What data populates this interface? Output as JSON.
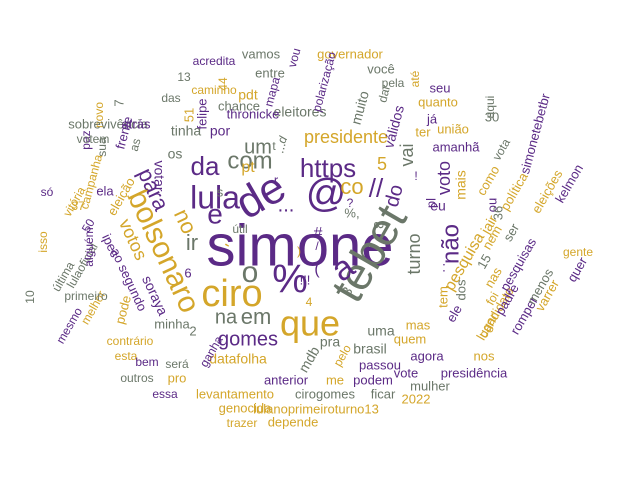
{
  "colors": {
    "purple": "#5b2a86",
    "gold": "#d4a62a",
    "gray": "#6b7769"
  },
  "words": [
    {
      "t": "simone",
      "c": "purple"
    },
    {
      "t": "tebet",
      "c": "gray"
    },
    {
      "t": "de",
      "c": "purple"
    },
    {
      "t": "@",
      "c": "purple"
    },
    {
      "t": "ciro",
      "c": "gold"
    },
    {
      "t": "que",
      "c": "gold"
    },
    {
      "t": "%",
      "c": "purple"
    },
    {
      "t": "a",
      "c": "purple"
    },
    {
      "t": "bolsonaro",
      "c": "gold"
    },
    {
      "t": "lula",
      "c": "purple"
    },
    {
      "t": "https",
      "c": "purple"
    },
    {
      "t": "o",
      "c": "gray"
    },
    {
      "t": "e",
      "c": "purple"
    },
    {
      "t": "com",
      "c": "gray"
    },
    {
      "t": "para",
      "c": "purple"
    },
    {
      "t": "no",
      "c": "gold"
    },
    {
      "t": "não",
      "c": "purple"
    },
    {
      "t": "da",
      "c": "purple"
    },
    {
      "t": "gomes",
      "c": "purple"
    },
    {
      "t": "em",
      "c": "gray"
    },
    {
      "t": "na",
      "c": "gray"
    },
    {
      "t": "votos",
      "c": "gold"
    },
    {
      "t": "co",
      "c": "gold"
    },
    {
      "t": "voto",
      "c": "purple"
    },
    {
      "t": "presidente",
      "c": "gold"
    },
    {
      "t": "turno",
      "c": "gray"
    },
    {
      "t": "do",
      "c": "purple"
    },
    {
      "t": "vai",
      "c": "gray"
    },
    {
      "t": "um",
      "c": "gray"
    },
    {
      "t": "pesquisa",
      "c": "gold"
    },
    {
      "t": "datafolha",
      "c": "gold"
    },
    {
      "t": "votar",
      "c": "purple"
    },
    {
      "t": "ao segundo",
      "c": "purple"
    },
    {
      "t": "brasil",
      "c": "gray"
    },
    {
      "t": "uma",
      "c": "gray"
    },
    {
      "t": "pra",
      "c": "gray"
    },
    {
      "t": "mais",
      "c": "gold"
    },
    {
      "t": "eu",
      "c": "purple"
    },
    {
      "t": "jair",
      "c": "gold"
    },
    {
      "t": "dos",
      "c": "gray"
    },
    {
      "t": "mdb",
      "c": "gray"
    },
    {
      "t": "eleitores",
      "c": "gray"
    },
    {
      "t": "amanhã",
      "c": "purple"
    },
    {
      "t": "válidos",
      "c": "purple"
    },
    {
      "t": "tinha",
      "c": "gray"
    },
    {
      "t": "soraya",
      "c": "purple"
    },
    {
      "t": "minha",
      "c": "gray"
    },
    {
      "t": "pdt",
      "c": "gold"
    },
    {
      "t": "thronicke",
      "c": "purple"
    },
    {
      "t": "chance",
      "c": "gray"
    },
    {
      "t": "os",
      "c": "gray"
    },
    {
      "t": "por",
      "c": "purple"
    },
    {
      "t": "ipec",
      "c": "purple"
    },
    {
      "t": "6",
      "c": "purple"
    },
    {
      "t": "2",
      "c": "gray"
    },
    {
      "t": "5",
      "c": "gold"
    },
    {
      "t": "muito",
      "c": "gray"
    },
    {
      "t": "quem",
      "c": "gold"
    },
    {
      "t": "mas",
      "c": "gold"
    },
    {
      "t": "passou",
      "c": "purple"
    },
    {
      "t": "anterior",
      "c": "purple"
    },
    {
      "t": "cirogomes",
      "c": "gray"
    },
    {
      "t": "me",
      "c": "gold"
    },
    {
      "t": "podem",
      "c": "purple"
    },
    {
      "t": "agora",
      "c": "purple"
    },
    {
      "t": "levantamento",
      "c": "gold"
    },
    {
      "t": "lulanoprimeiroturno13",
      "c": "gold"
    },
    {
      "t": "genocida",
      "c": "gold"
    },
    {
      "t": "depende",
      "c": "gold"
    },
    {
      "t": "2022",
      "c": "gold"
    },
    {
      "t": "ficar",
      "c": "gray"
    },
    {
      "t": "mulher",
      "c": "gray"
    },
    {
      "t": "vote",
      "c": "purple"
    },
    {
      "t": "presidência",
      "c": "purple"
    },
    {
      "t": "nos",
      "c": "gold"
    },
    {
      "t": "candidato",
      "c": "gold"
    },
    {
      "t": "romper",
      "c": "purple"
    },
    {
      "t": "varrer",
      "c": "gold"
    },
    {
      "t": "quer",
      "c": "purple"
    },
    {
      "t": "pesquisas",
      "c": "purple"
    },
    {
      "t": "gente",
      "c": "gold"
    },
    {
      "t": "menos",
      "c": "gray"
    },
    {
      "t": "padre",
      "c": "purple"
    },
    {
      "t": "lugar",
      "c": "gold"
    },
    {
      "t": "foi",
      "c": "gold"
    },
    {
      "t": "nas",
      "c": "gold"
    },
    {
      "t": "eleições",
      "c": "gold"
    },
    {
      "t": "kelmon",
      "c": "purple"
    },
    {
      "t": "política",
      "c": "gold"
    },
    {
      "t": "nem",
      "c": "gold"
    },
    {
      "t": "ser",
      "c": "gray"
    },
    {
      "t": "15",
      "c": "gray"
    },
    {
      "t": "ele",
      "c": "purple"
    },
    {
      "t": "tem",
      "c": "gold"
    },
    {
      "t": "ou",
      "c": "purple"
    },
    {
      "t": "pl",
      "c": "purple"
    },
    {
      "t": "como",
      "c": "gold"
    },
    {
      "t": "36",
      "c": "gray"
    },
    {
      "t": "vota",
      "c": "gray"
    },
    {
      "t": "simonetebetbr",
      "c": "purple"
    },
    {
      "t": "aqui",
      "c": "gray"
    },
    {
      "t": "30",
      "c": "gray"
    },
    {
      "t": "união",
      "c": "gold"
    },
    {
      "t": "seu",
      "c": "purple"
    },
    {
      "t": "quanto",
      "c": "gold"
    },
    {
      "t": "ter",
      "c": "gold"
    },
    {
      "t": "já",
      "c": "purple"
    },
    {
      "t": "pela",
      "c": "gray"
    },
    {
      "t": "até",
      "c": "gold"
    },
    {
      "t": "dar",
      "c": "gray"
    },
    {
      "t": "você",
      "c": "gray"
    },
    {
      "t": "governador",
      "c": "gold"
    },
    {
      "t": "polarização",
      "c": "purple"
    },
    {
      "t": "vou",
      "c": "purple"
    },
    {
      "t": "vamos",
      "c": "gray"
    },
    {
      "t": "acredita",
      "c": "purple"
    },
    {
      "t": "mapa",
      "c": "purple"
    },
    {
      "t": "entre",
      "c": "gray"
    },
    {
      "t": "44",
      "c": "gold"
    },
    {
      "t": "13",
      "c": "gray"
    },
    {
      "t": "caminho",
      "c": "gold"
    },
    {
      "t": "das",
      "c": "gray"
    },
    {
      "t": "felipe",
      "c": "purple"
    },
    {
      "t": "51",
      "c": "gold"
    },
    {
      "t": "7",
      "c": "gray"
    },
    {
      "t": "novo",
      "c": "gold"
    },
    {
      "t": "sobrevivência",
      "c": "gray"
    },
    {
      "t": "paz",
      "c": "purple"
    },
    {
      "t": "votem",
      "c": "gray"
    },
    {
      "t": "sua",
      "c": "gray"
    },
    {
      "t": "frente",
      "c": "purple"
    },
    {
      "t": "atrás",
      "c": "purple"
    },
    {
      "t": "as",
      "c": "gray"
    },
    {
      "t": "vitória",
      "c": "gold"
    },
    {
      "t": "eleição",
      "c": "gold"
    },
    {
      "t": "campanha",
      "c": "gold"
    },
    {
      "t": "ela",
      "c": "purple"
    },
    {
      "t": "37",
      "c": "gold"
    },
    {
      "t": "50",
      "c": "purple"
    },
    {
      "t": "só",
      "c": "purple"
    },
    {
      "t": "isso",
      "c": "gold"
    },
    {
      "t": "10",
      "c": "gray"
    },
    {
      "t": "última",
      "c": "gray"
    },
    {
      "t": "lulaoficial",
      "c": "gray"
    },
    {
      "t": "alguém",
      "c": "purple"
    },
    {
      "t": "melhor",
      "c": "gold"
    },
    {
      "t": "primeiro",
      "c": "gray"
    },
    {
      "t": "mesmo",
      "c": "purple"
    },
    {
      "t": "pode",
      "c": "gold"
    },
    {
      "t": "contrário",
      "c": "gold"
    },
    {
      "t": "esta",
      "c": "gold"
    },
    {
      "t": "outros",
      "c": "gray"
    },
    {
      "t": "bem",
      "c": "purple"
    },
    {
      "t": "será",
      "c": "gray"
    },
    {
      "t": "pro",
      "c": "gold"
    },
    {
      "t": "essa",
      "c": "purple"
    },
    {
      "t": "ganha",
      "c": "purple"
    },
    {
      "t": "trazer",
      "c": "gold"
    },
    {
      "t": "pelo",
      "c": "gold"
    },
    {
      "t": "útil",
      "c": "gray"
    },
    {
      "t": "pt",
      "c": "gold"
    },
    {
      "t": "ir",
      "c": "gray"
    },
    {
      "t": "#",
      "c": "purple"
    },
    {
      "t": "//",
      "c": "purple"
    },
    {
      "t": ":",
      "c": "purple"
    },
    {
      "t": "(",
      "c": "purple"
    },
    {
      "t": ")",
      "c": "gold"
    },
    {
      "t": "...",
      "c": "gray"
    },
    {
      "t": "!",
      "c": "purple"
    },
    {
      "t": "?",
      "c": "purple"
    },
    {
      "t": "!!!",
      "c": "purple"
    },
    {
      "t": "8",
      "c": "gray"
    },
    {
      "t": "4",
      "c": "gold"
    },
    {
      "t": "3",
      "c": "gray"
    },
    {
      "t": "%,",
      "c": "gray"
    },
    {
      "t": "'",
      "c": "gold"
    },
    {
      "t": "d",
      "c": "gray"
    },
    {
      "t": "t",
      "c": "gray"
    },
    {
      "t": "s",
      "c": "gray"
    },
    {
      "t": "r",
      "c": "purple"
    },
    {
      "t": "...",
      "c": "purple"
    },
    {
      "t": "/",
      "c": "purple"
    }
  ]
}
